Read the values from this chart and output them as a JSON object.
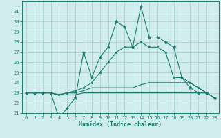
{
  "x": [
    0,
    1,
    2,
    3,
    4,
    5,
    6,
    7,
    8,
    9,
    10,
    11,
    12,
    13,
    14,
    15,
    16,
    17,
    18,
    19,
    20,
    21,
    22,
    23
  ],
  "line_main": [
    23.0,
    23.0,
    23.0,
    23.0,
    20.5,
    21.5,
    22.5,
    27.0,
    24.5,
    26.5,
    27.5,
    30.0,
    29.5,
    27.5,
    31.5,
    28.5,
    28.5,
    28.0,
    27.5,
    24.5,
    23.5,
    23.0,
    23.0,
    22.5
  ],
  "line_upper": [
    23.0,
    23.0,
    23.0,
    23.0,
    22.8,
    23.0,
    23.2,
    23.5,
    24.0,
    25.0,
    26.0,
    27.0,
    27.5,
    27.5,
    28.0,
    27.5,
    27.5,
    27.0,
    24.5,
    24.5,
    24.0,
    23.5,
    23.0,
    22.5
  ],
  "line_mean": [
    23.0,
    23.0,
    23.0,
    23.0,
    22.8,
    23.0,
    23.0,
    23.2,
    23.5,
    23.5,
    23.5,
    23.5,
    23.5,
    23.5,
    23.8,
    24.0,
    24.0,
    24.0,
    24.0,
    24.0,
    24.0,
    23.5,
    23.0,
    22.5
  ],
  "line_lower": [
    23.0,
    23.0,
    23.0,
    23.0,
    22.8,
    22.8,
    22.8,
    23.0,
    23.0,
    23.0,
    23.0,
    23.0,
    23.0,
    23.0,
    23.0,
    23.0,
    23.0,
    23.0,
    23.0,
    23.0,
    23.0,
    23.0,
    23.0,
    22.5
  ],
  "color": "#1a7a6e",
  "bg_color": "#d0ecec",
  "grid_color": "#aad4d4",
  "xlabel": "Humidex (Indice chaleur)",
  "ylim": [
    21,
    32
  ],
  "yticks": [
    21,
    22,
    23,
    24,
    25,
    26,
    27,
    28,
    29,
    30,
    31
  ],
  "xlim": [
    -0.5,
    23.5
  ],
  "xticks": [
    0,
    1,
    2,
    3,
    4,
    5,
    6,
    7,
    8,
    9,
    10,
    11,
    12,
    13,
    14,
    15,
    16,
    17,
    18,
    19,
    20,
    21,
    22,
    23
  ]
}
